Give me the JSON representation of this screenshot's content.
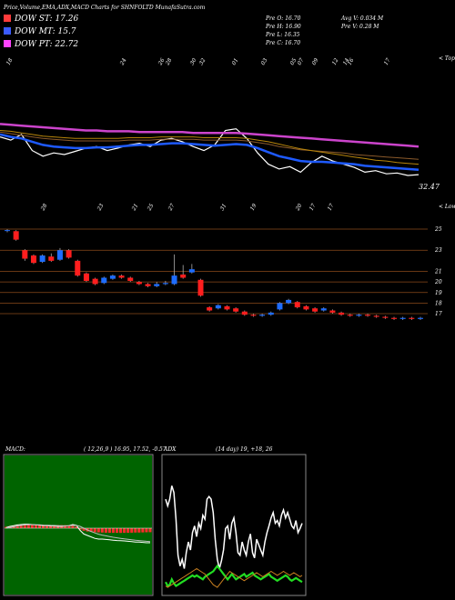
{
  "header": {
    "title": "Price,Volume,EMA,ADX,MACD Charts for SHNFOLTD MunafaSutra.com"
  },
  "legend": [
    {
      "label": "DOW ST: 17.26",
      "color": "#ff3b3b"
    },
    {
      "label": "DOW MT: 15.7",
      "color": "#3b5bff"
    },
    {
      "label": "DOW PT: 22.72",
      "color": "#ff44ff"
    }
  ],
  "stats": {
    "open": "Pre  O: 16.70",
    "high": "Pre  H: 16.90",
    "low": "Pre  L: 16.35",
    "close": "Pre  C: 16.70",
    "avg_vol": "Avg V: 0.034  M",
    "pre_vol": "Pre  V: 0.28  M"
  },
  "colors": {
    "up": "#1e6cff",
    "down": "#ff1e1e",
    "grid": "#8b4a1a",
    "ema_pink": "#cc44cc",
    "ema_blue": "#1e5aff"
  },
  "chart_data": [
    {
      "type": "line",
      "name": "ema-panel",
      "right_label_top": "< Topo",
      "right_label_bottom": "< Lowes",
      "value_label": "32.47",
      "date_labels_top": [
        "18",
        "24",
        "26",
        "28",
        "30",
        "32",
        "01",
        "03",
        "05",
        "07",
        "09",
        "12",
        "14",
        "16",
        "17",
        "18",
        "19"
      ],
      "date_labels_bottom": [
        "28",
        "23",
        "21",
        "25",
        "27",
        "31",
        "19",
        "20",
        "17",
        "17"
      ],
      "series": [
        {
          "name": "price",
          "color": "#ffffff",
          "values": [
            0.38,
            0.42,
            0.35,
            0.55,
            0.62,
            0.58,
            0.6,
            0.56,
            0.52,
            0.5,
            0.55,
            0.52,
            0.48,
            0.46,
            0.5,
            0.42,
            0.4,
            0.44,
            0.5,
            0.55,
            0.48,
            0.3,
            0.28,
            0.4,
            0.58,
            0.72,
            0.78,
            0.75,
            0.82,
            0.7,
            0.62,
            0.68,
            0.72,
            0.76,
            0.82,
            0.8,
            0.84,
            0.83,
            0.86,
            0.85
          ]
        },
        {
          "name": "ema-blue",
          "color": "#1e5aff",
          "values": [
            0.35,
            0.38,
            0.4,
            0.44,
            0.48,
            0.5,
            0.51,
            0.52,
            0.52,
            0.51,
            0.51,
            0.5,
            0.49,
            0.48,
            0.48,
            0.47,
            0.46,
            0.46,
            0.47,
            0.48,
            0.49,
            0.48,
            0.47,
            0.48,
            0.52,
            0.57,
            0.62,
            0.65,
            0.68,
            0.69,
            0.69,
            0.7,
            0.71,
            0.72,
            0.74,
            0.75,
            0.76,
            0.77,
            0.78,
            0.79
          ]
        },
        {
          "name": "ema-pink",
          "color": "#cc44cc",
          "values": [
            0.22,
            0.23,
            0.24,
            0.25,
            0.26,
            0.27,
            0.28,
            0.29,
            0.3,
            0.3,
            0.31,
            0.31,
            0.31,
            0.32,
            0.32,
            0.32,
            0.32,
            0.32,
            0.33,
            0.33,
            0.33,
            0.33,
            0.33,
            0.34,
            0.35,
            0.36,
            0.37,
            0.38,
            0.39,
            0.4,
            0.41,
            0.42,
            0.43,
            0.44,
            0.45,
            0.46,
            0.47,
            0.48,
            0.49,
            0.5
          ]
        },
        {
          "name": "ema-brown",
          "color": "#8b5a2b",
          "values": [
            0.32,
            0.34,
            0.36,
            0.38,
            0.4,
            0.41,
            0.42,
            0.43,
            0.43,
            0.43,
            0.43,
            0.43,
            0.42,
            0.42,
            0.42,
            0.41,
            0.41,
            0.41,
            0.41,
            0.42,
            0.42,
            0.42,
            0.42,
            0.43,
            0.45,
            0.47,
            0.5,
            0.52,
            0.54,
            0.55,
            0.56,
            0.57,
            0.58,
            0.6,
            0.61,
            0.62,
            0.63,
            0.64,
            0.65,
            0.66
          ]
        },
        {
          "name": "ema-orange",
          "color": "#b8860b",
          "values": [
            0.3,
            0.31,
            0.33,
            0.35,
            0.37,
            0.38,
            0.39,
            0.4,
            0.4,
            0.4,
            0.4,
            0.4,
            0.39,
            0.39,
            0.39,
            0.38,
            0.38,
            0.38,
            0.38,
            0.39,
            0.39,
            0.39,
            0.39,
            0.4,
            0.42,
            0.44,
            0.47,
            0.5,
            0.53,
            0.55,
            0.57,
            0.59,
            0.61,
            0.63,
            0.65,
            0.67,
            0.68,
            0.7,
            0.71,
            0.72
          ]
        }
      ]
    },
    {
      "type": "candlestick",
      "name": "price-panel",
      "y_ticks": [
        "25",
        "23",
        "21",
        "20",
        "19",
        "18",
        "17"
      ],
      "y_tick_values": [
        25,
        23,
        21,
        20,
        19,
        18,
        17
      ],
      "candles": [
        {
          "o": 24.9,
          "c": 24.9,
          "h": 25.0,
          "l": 24.7,
          "up": true
        },
        {
          "o": 24.8,
          "c": 24.0,
          "h": 24.9,
          "l": 23.9,
          "up": false
        },
        {
          "o": 23.0,
          "c": 22.2,
          "h": 23.1,
          "l": 22.0,
          "up": false
        },
        {
          "o": 22.5,
          "c": 21.8,
          "h": 22.6,
          "l": 21.7,
          "up": false
        },
        {
          "o": 21.9,
          "c": 22.5,
          "h": 22.6,
          "l": 21.8,
          "up": true
        },
        {
          "o": 22.4,
          "c": 22.0,
          "h": 22.7,
          "l": 21.9,
          "up": false
        },
        {
          "o": 22.1,
          "c": 23.0,
          "h": 23.2,
          "l": 22.0,
          "up": true
        },
        {
          "o": 23.0,
          "c": 22.3,
          "h": 23.1,
          "l": 22.2,
          "up": false
        },
        {
          "o": 22.0,
          "c": 20.6,
          "h": 22.1,
          "l": 20.5,
          "up": false
        },
        {
          "o": 20.8,
          "c": 20.1,
          "h": 20.9,
          "l": 20.0,
          "up": false
        },
        {
          "o": 20.3,
          "c": 19.8,
          "h": 20.4,
          "l": 19.7,
          "up": false
        },
        {
          "o": 19.9,
          "c": 20.4,
          "h": 20.5,
          "l": 19.8,
          "up": true
        },
        {
          "o": 20.3,
          "c": 20.6,
          "h": 20.7,
          "l": 20.2,
          "up": true
        },
        {
          "o": 20.6,
          "c": 20.4,
          "h": 20.7,
          "l": 20.3,
          "up": false
        },
        {
          "o": 20.4,
          "c": 20.1,
          "h": 20.5,
          "l": 20.0,
          "up": false
        },
        {
          "o": 20.0,
          "c": 19.8,
          "h": 20.1,
          "l": 19.7,
          "up": false
        },
        {
          "o": 19.8,
          "c": 19.6,
          "h": 19.9,
          "l": 19.5,
          "up": false
        },
        {
          "o": 19.6,
          "c": 19.8,
          "h": 20.0,
          "l": 19.5,
          "up": true
        },
        {
          "o": 19.8,
          "c": 19.9,
          "h": 20.1,
          "l": 19.7,
          "up": true
        },
        {
          "o": 19.8,
          "c": 20.6,
          "h": 22.6,
          "l": 19.7,
          "up": true
        },
        {
          "o": 20.7,
          "c": 20.4,
          "h": 21.6,
          "l": 20.3,
          "up": false
        },
        {
          "o": 20.9,
          "c": 21.2,
          "h": 21.7,
          "l": 20.8,
          "up": true
        },
        {
          "o": 20.2,
          "c": 18.7,
          "h": 20.3,
          "l": 18.6,
          "up": false
        },
        {
          "o": 17.6,
          "c": 17.3,
          "h": 17.7,
          "l": 17.2,
          "up": false
        },
        {
          "o": 17.5,
          "c": 17.8,
          "h": 17.9,
          "l": 17.4,
          "up": true
        },
        {
          "o": 17.7,
          "c": 17.4,
          "h": 17.8,
          "l": 17.3,
          "up": false
        },
        {
          "o": 17.5,
          "c": 17.2,
          "h": 17.6,
          "l": 17.1,
          "up": false
        },
        {
          "o": 17.2,
          "c": 16.9,
          "h": 17.3,
          "l": 16.8,
          "up": false
        },
        {
          "o": 16.9,
          "c": 16.8,
          "h": 17.0,
          "l": 16.7,
          "up": false
        },
        {
          "o": 16.8,
          "c": 16.9,
          "h": 17.0,
          "l": 16.7,
          "up": true
        },
        {
          "o": 16.9,
          "c": 17.1,
          "h": 17.2,
          "l": 16.8,
          "up": true
        },
        {
          "o": 17.4,
          "c": 18.0,
          "h": 18.1,
          "l": 17.3,
          "up": true
        },
        {
          "o": 18.0,
          "c": 18.3,
          "h": 18.4,
          "l": 17.9,
          "up": true
        },
        {
          "o": 18.1,
          "c": 17.6,
          "h": 18.2,
          "l": 17.5,
          "up": false
        },
        {
          "o": 17.7,
          "c": 17.4,
          "h": 17.8,
          "l": 17.3,
          "up": false
        },
        {
          "o": 17.5,
          "c": 17.2,
          "h": 17.6,
          "l": 17.1,
          "up": false
        },
        {
          "o": 17.3,
          "c": 17.5,
          "h": 17.6,
          "l": 17.2,
          "up": true
        },
        {
          "o": 17.3,
          "c": 17.1,
          "h": 17.4,
          "l": 17.0,
          "up": false
        },
        {
          "o": 17.1,
          "c": 16.9,
          "h": 17.2,
          "l": 16.8,
          "up": false
        },
        {
          "o": 16.9,
          "c": 16.8,
          "h": 17.0,
          "l": 16.7,
          "up": false
        },
        {
          "o": 16.8,
          "c": 16.9,
          "h": 17.0,
          "l": 16.7,
          "up": true
        },
        {
          "o": 16.9,
          "c": 16.8,
          "h": 17.0,
          "l": 16.7,
          "up": false
        },
        {
          "o": 16.8,
          "c": 16.7,
          "h": 16.9,
          "l": 16.6,
          "up": false
        },
        {
          "o": 16.7,
          "c": 16.6,
          "h": 16.8,
          "l": 16.5,
          "up": false
        },
        {
          "o": 16.6,
          "c": 16.5,
          "h": 16.7,
          "l": 16.4,
          "up": false
        },
        {
          "o": 16.5,
          "c": 16.6,
          "h": 16.7,
          "l": 16.4,
          "up": true
        },
        {
          "o": 16.6,
          "c": 16.5,
          "h": 16.7,
          "l": 16.4,
          "up": false
        },
        {
          "o": 16.5,
          "c": 16.6,
          "h": 16.7,
          "l": 16.4,
          "up": true
        }
      ]
    },
    {
      "type": "bar",
      "name": "macd-panel",
      "label": "MACD:",
      "params": "( 12,26,9 ) 16.95,  17.52,  -0.57",
      "histogram": [
        0.2,
        0.3,
        0.35,
        0.4,
        0.42,
        0.44,
        0.45,
        0.46,
        0.46,
        0.45,
        0.45,
        0.44,
        0.44,
        0.43,
        0.42,
        0.42,
        0.42,
        0.4,
        0.3,
        0.2,
        -0.2,
        -0.35,
        -0.45,
        -0.5,
        -0.55,
        -0.58,
        -0.6,
        -0.62,
        -0.63,
        -0.64,
        -0.64,
        -0.65,
        -0.64,
        -0.63,
        -0.62,
        -0.6,
        -0.6,
        -0.58,
        -0.56,
        -0.55
      ],
      "macd_line": [
        0.1,
        0.25,
        0.35,
        0.45,
        0.5,
        0.55,
        0.55,
        0.5,
        0.45,
        0.4,
        0.35,
        0.35,
        0.3,
        0.3,
        0.25,
        0.25,
        0.3,
        0.35,
        0.5,
        0.4,
        -0.3,
        -0.8,
        -1.0,
        -1.2,
        -1.4,
        -1.5,
        -1.5,
        -1.55,
        -1.6,
        -1.65,
        -1.7,
        -1.72,
        -1.75,
        -1.8,
        -1.85,
        -1.9,
        -1.9,
        -1.95,
        -2.0,
        -2.0
      ],
      "signal_line": [
        0.0,
        0.1,
        0.2,
        0.3,
        0.38,
        0.45,
        0.48,
        0.49,
        0.48,
        0.46,
        0.43,
        0.41,
        0.39,
        0.37,
        0.35,
        0.33,
        0.32,
        0.33,
        0.37,
        0.38,
        0.25,
        0.0,
        -0.25,
        -0.45,
        -0.65,
        -0.82,
        -0.95,
        -1.05,
        -1.15,
        -1.25,
        -1.33,
        -1.4,
        -1.47,
        -1.53,
        -1.6,
        -1.66,
        -1.7,
        -1.75,
        -1.8,
        -1.84
      ]
    },
    {
      "type": "line",
      "name": "adx-panel",
      "label": "ADX",
      "params": "(14  day) 19,  +18,  26",
      "series": [
        {
          "name": "adx",
          "color": "#ffffff",
          "values": [
            0.3,
            0.35,
            0.3,
            0.2,
            0.25,
            0.45,
            0.72,
            0.8,
            0.75,
            0.82,
            0.7,
            0.62,
            0.68,
            0.55,
            0.5,
            0.58,
            0.48,
            0.52,
            0.42,
            0.45,
            0.3,
            0.28,
            0.3,
            0.4,
            0.6,
            0.75,
            0.82,
            0.76,
            0.68,
            0.52,
            0.5,
            0.6,
            0.48,
            0.44,
            0.55,
            0.7,
            0.72,
            0.62,
            0.68,
            0.72,
            0.62,
            0.56,
            0.7,
            0.74,
            0.6,
            0.64,
            0.68,
            0.72,
            0.62,
            0.55,
            0.5,
            0.44,
            0.4,
            0.48,
            0.46,
            0.5,
            0.42,
            0.38,
            0.44,
            0.4,
            0.45,
            0.5,
            0.52,
            0.46,
            0.55,
            0.52,
            0.48
          ]
        },
        {
          "name": "plus-di",
          "color": "#22dd22",
          "values": [
            0.92,
            0.95,
            0.94,
            0.9,
            0.93,
            0.95,
            0.94,
            0.93,
            0.92,
            0.91,
            0.9,
            0.89,
            0.88,
            0.87,
            0.88,
            0.87,
            0.88,
            0.89,
            0.9,
            0.88,
            0.87,
            0.86,
            0.85,
            0.84,
            0.82,
            0.8,
            0.82,
            0.84,
            0.86,
            0.88,
            0.9,
            0.88,
            0.86,
            0.88,
            0.9,
            0.89,
            0.88,
            0.87,
            0.86,
            0.88,
            0.87,
            0.86,
            0.85,
            0.87,
            0.88,
            0.89,
            0.9,
            0.89,
            0.88,
            0.87,
            0.86,
            0.88,
            0.89,
            0.9,
            0.91,
            0.9,
            0.89,
            0.88,
            0.87,
            0.88,
            0.9,
            0.91,
            0.9,
            0.89,
            0.9,
            0.91,
            0.92
          ]
        },
        {
          "name": "minus-di",
          "color": "#c87f20",
          "values": [
            0.95,
            0.96,
            0.95,
            0.94,
            0.93,
            0.92,
            0.91,
            0.9,
            0.89,
            0.88,
            0.87,
            0.86,
            0.85,
            0.84,
            0.83,
            0.82,
            0.83,
            0.84,
            0.85,
            0.86,
            0.88,
            0.9,
            0.92,
            0.94,
            0.95,
            0.96,
            0.94,
            0.92,
            0.9,
            0.88,
            0.86,
            0.84,
            0.85,
            0.86,
            0.87,
            0.88,
            0.89,
            0.9,
            0.91,
            0.9,
            0.89,
            0.88,
            0.87,
            0.86,
            0.85,
            0.86,
            0.87,
            0.88,
            0.87,
            0.86,
            0.85,
            0.84,
            0.85,
            0.86,
            0.87,
            0.86,
            0.85,
            0.84,
            0.85,
            0.86,
            0.87,
            0.86,
            0.85,
            0.86,
            0.87,
            0.88,
            0.87
          ]
        }
      ]
    }
  ]
}
